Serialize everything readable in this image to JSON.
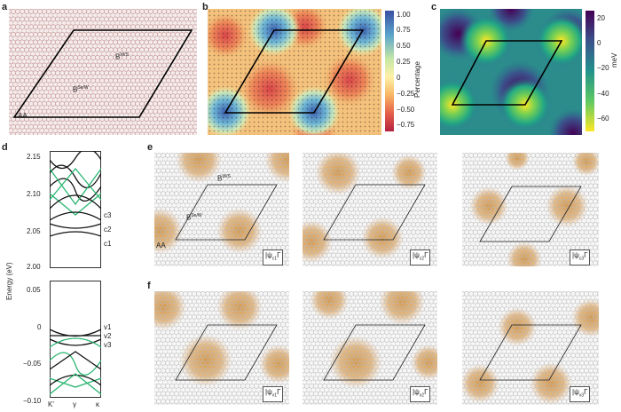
{
  "panels": {
    "a": {
      "label": "a",
      "site_labels": [
        "B",
        "W/S",
        "B",
        "Se/W",
        "AA"
      ]
    },
    "b": {
      "label": "b",
      "colorbar": {
        "title": "Percentage",
        "ticks": [
          "1.00",
          "0.75",
          "0.50",
          "0.25",
          "0",
          "−0.25",
          "−0.50",
          "−0.75"
        ]
      }
    },
    "c": {
      "label": "c",
      "colorbar": {
        "title": "meV",
        "ticks": [
          "20",
          "0",
          "−20",
          "−40",
          "−60"
        ]
      }
    },
    "d": {
      "label": "d",
      "ylabel": "Energy (eV)",
      "upper_ticks": [
        "2.15",
        "2.10",
        "2.05",
        "2.00"
      ],
      "lower_ticks": [
        "0.05",
        "0",
        "−0.05",
        "−0.10"
      ],
      "x_ticks": [
        "K'",
        "γ",
        "κ"
      ],
      "band_labels_upper": [
        "c3",
        "c2",
        "c1"
      ],
      "band_labels_lower": [
        "v1",
        "v2",
        "v3"
      ]
    },
    "e": {
      "label": "e",
      "site_labels": [
        "B",
        "W/S",
        "B",
        "Se/W",
        "AA"
      ],
      "states": [
        "|ψ",
        "c1",
        "Γ",
        "|ψ",
        "c2",
        "Γ",
        "|ψ",
        "c3",
        "Γ"
      ]
    },
    "f": {
      "label": "f",
      "states": [
        "|ψ",
        "v1",
        "Γ",
        "|ψ",
        "v2",
        "Γ",
        "|ψ",
        "v3",
        "Γ"
      ]
    }
  },
  "colors": {
    "band_black": "#111111",
    "band_green": "#2bb673",
    "density": "#d49a52",
    "lattice": "#b8b8b8"
  }
}
